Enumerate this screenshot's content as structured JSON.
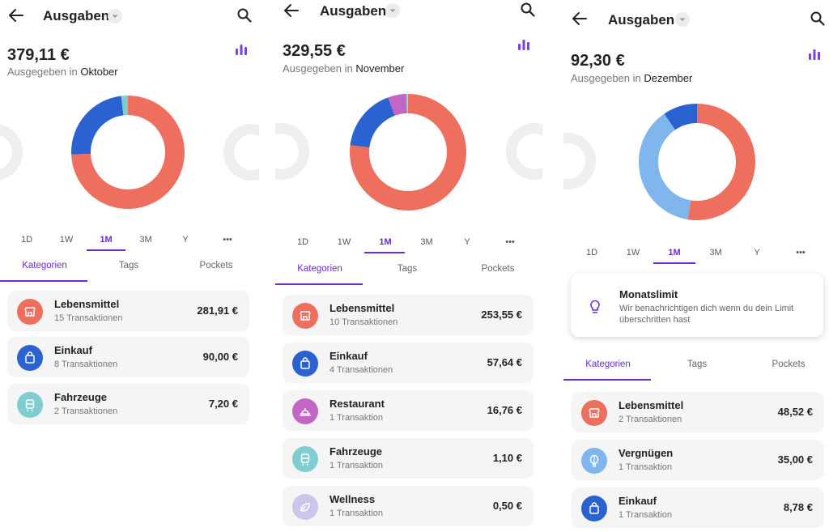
{
  "colors": {
    "accent": "#6b2bd8",
    "lebensmittel": "#ef6f5e",
    "einkauf": "#2a62d1",
    "fahrzeuge": "#7fcdd0",
    "restaurant": "#c266c6",
    "wellness": "#cbc6ec",
    "vergnuegen": "#7fb6ee"
  },
  "periods": [
    "1D",
    "1W",
    "1M",
    "3M",
    "Y",
    "•••"
  ],
  "tabs": [
    "Kategorien",
    "Tags",
    "Pockets"
  ],
  "screens": [
    {
      "header": {
        "title": "Ausgaben"
      },
      "summary": {
        "amount": "379,11 €",
        "prefix": "Ausgegeben in",
        "month": "Oktober"
      },
      "chart_data": {
        "type": "pie",
        "categories": [
          "Lebensmittel",
          "Einkauf",
          "Fahrzeuge"
        ],
        "values": [
          281.91,
          90.0,
          7.2
        ]
      },
      "categories": [
        {
          "name": "Lebensmittel",
          "count": "15 Transaktionen",
          "amount": "281,91 €",
          "icon": "storefront-icon",
          "color": "#ef6f5e"
        },
        {
          "name": "Einkauf",
          "count": "8 Transaktionen",
          "amount": "90,00 €",
          "icon": "shopping-bag-icon",
          "color": "#2a62d1"
        },
        {
          "name": "Fahrzeuge",
          "count": "2 Transaktionen",
          "amount": "7,20 €",
          "icon": "train-icon",
          "color": "#7fcdd0"
        }
      ]
    },
    {
      "header": {
        "title": "Ausgaben"
      },
      "summary": {
        "amount": "329,55 €",
        "prefix": "Ausgegeben in",
        "month": "November"
      },
      "chart_data": {
        "type": "pie",
        "categories": [
          "Lebensmittel",
          "Einkauf",
          "Restaurant",
          "Fahrzeuge",
          "Wellness"
        ],
        "values": [
          253.55,
          57.64,
          16.76,
          1.1,
          0.5
        ]
      },
      "categories": [
        {
          "name": "Lebensmittel",
          "count": "10 Transaktionen",
          "amount": "253,55 €",
          "icon": "storefront-icon",
          "color": "#ef6f5e"
        },
        {
          "name": "Einkauf",
          "count": "4 Transaktionen",
          "amount": "57,64 €",
          "icon": "shopping-bag-icon",
          "color": "#2a62d1"
        },
        {
          "name": "Restaurant",
          "count": "1 Transaktion",
          "amount": "16,76 €",
          "icon": "food-tray-icon",
          "color": "#c266c6"
        },
        {
          "name": "Fahrzeuge",
          "count": "1 Transaktion",
          "amount": "1,10 €",
          "icon": "train-icon",
          "color": "#7fcdd0"
        },
        {
          "name": "Wellness",
          "count": "1 Transaktion",
          "amount": "0,50 €",
          "icon": "leaf-icon",
          "color": "#cbc6ec"
        }
      ]
    },
    {
      "header": {
        "title": "Ausgaben"
      },
      "summary": {
        "amount": "92,30 €",
        "prefix": "Ausgegeben in",
        "month": "Dezember"
      },
      "limit": {
        "title": "Monatslimit",
        "text": "Wir benachrichtigen dich wenn du dein Limit überschritten hast"
      },
      "chart_data": {
        "type": "pie",
        "categories": [
          "Lebensmittel",
          "Vergnügen",
          "Einkauf"
        ],
        "values": [
          48.52,
          35.0,
          8.78
        ]
      },
      "categories": [
        {
          "name": "Lebensmittel",
          "count": "2 Transaktionen",
          "amount": "48,52 €",
          "icon": "storefront-icon",
          "color": "#ef6f5e"
        },
        {
          "name": "Vergnügen",
          "count": "1 Transaktion",
          "amount": "35,00 €",
          "icon": "balloon-icon",
          "color": "#7fb6ee"
        },
        {
          "name": "Einkauf",
          "count": "1 Transaktion",
          "amount": "8,78 €",
          "icon": "shopping-bag-icon",
          "color": "#2a62d1"
        }
      ]
    }
  ]
}
